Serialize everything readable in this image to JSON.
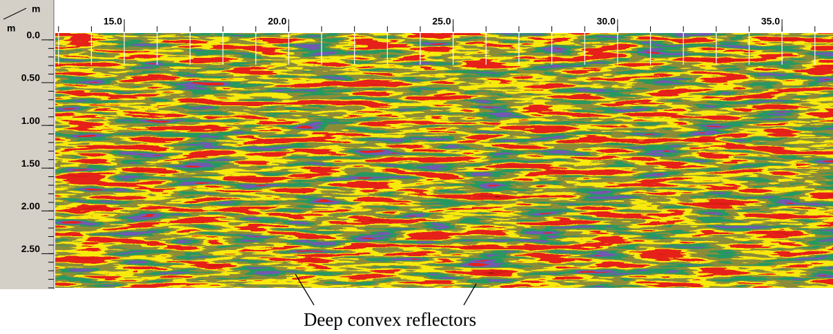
{
  "figure": {
    "x_axis": {
      "unit": "m",
      "lim": [
        12.9,
        36.55
      ],
      "ticks": [
        {
          "value": 15,
          "label": "15.0"
        },
        {
          "value": 20,
          "label": "20.0"
        },
        {
          "value": 25,
          "label": "25.0"
        },
        {
          "value": 30,
          "label": "30.0"
        },
        {
          "value": 35,
          "label": "35.0"
        }
      ]
    },
    "y_axis": {
      "unit": "m",
      "lim": [
        -0.08,
        2.9
      ],
      "ticks": [
        {
          "value": 0,
          "label": "0.0"
        },
        {
          "value": 0.5,
          "label": "0.50"
        },
        {
          "value": 1,
          "label": "1.00"
        },
        {
          "value": 1.5,
          "label": "1.50"
        },
        {
          "value": 2,
          "label": "2.00"
        },
        {
          "value": 2.5,
          "label": "2.50"
        }
      ]
    },
    "annotation": "Deep convex reflectors"
  }
}
